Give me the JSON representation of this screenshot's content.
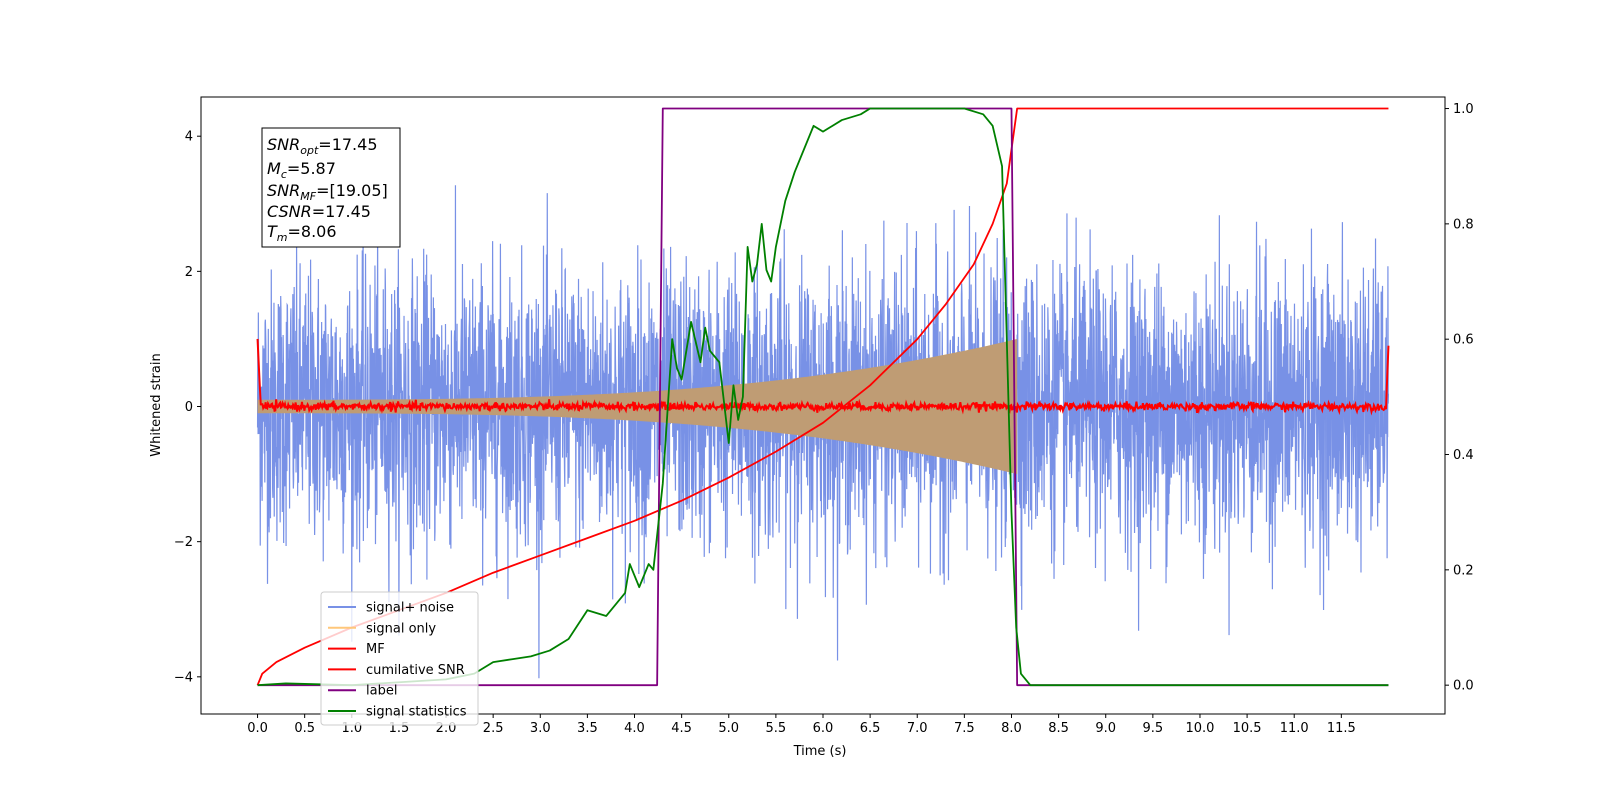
{
  "chart_data": {
    "type": "line",
    "xlabel": "Time (s)",
    "ylabel": "Whitened strain",
    "x_ticks": [
      "0.0",
      "0.5",
      "1.0",
      "1.5",
      "2.0",
      "2.5",
      "3.0",
      "3.5",
      "4.0",
      "4.5",
      "5.0",
      "5.5",
      "6.0",
      "6.5",
      "7.0",
      "7.5",
      "8.0",
      "8.5",
      "9.0",
      "9.5",
      "10.0",
      "10.5",
      "11.0",
      "11.5"
    ],
    "xlim": [
      -0.6,
      12.6
    ],
    "ylim_left": [
      -4.55,
      4.58
    ],
    "ylim_right": [
      -0.05,
      1.02
    ],
    "y_ticks_left": [
      -4,
      -2,
      0,
      2,
      4
    ],
    "y_ticks_right": [
      "0.0",
      "0.2",
      "0.4",
      "0.6",
      "0.8",
      "1.0"
    ],
    "grid": false,
    "legend_location": "lower-left",
    "info_box": {
      "snr_opt": {
        "main": "SNR",
        "sub": "opt",
        "value": "=17.45"
      },
      "mc": {
        "main": "M",
        "sub": "c",
        "value": "=5.87"
      },
      "snr_mf": {
        "main": "SNR",
        "sub": "MF",
        "value": "=[19.05]"
      },
      "csnr": {
        "main": "CSNR",
        "value": "=17.45"
      },
      "tm": {
        "main": "T",
        "sub": "m",
        "value": "=8.06"
      }
    },
    "series": [
      {
        "name": "signal+ noise",
        "axis": "left",
        "color": "#7891e6",
        "description_range": [
          0.0,
          12.0
        ],
        "typical_amplitude": 1.0,
        "peak_range": [
          -4.1,
          4.15
        ]
      },
      {
        "name": "signal only",
        "axis": "left",
        "color": "#ffc77a",
        "envelope_start": 0.0,
        "envelope_end": 8.06,
        "envelope_amplitude_start": 0.1,
        "envelope_amplitude_end": 1.0
      },
      {
        "name": "MF",
        "axis": "left",
        "color": "#ff0000",
        "typical_amplitude": 0.05,
        "edge_values": [
          1.0,
          0.9
        ]
      },
      {
        "name": "cumilative SNR",
        "axis": "right",
        "color": "#ff0000",
        "x": [
          0.0,
          0.05,
          0.2,
          0.5,
          1.0,
          1.5,
          2.0,
          2.5,
          3.0,
          3.5,
          4.0,
          4.5,
          5.0,
          5.5,
          6.0,
          6.5,
          7.0,
          7.3,
          7.6,
          7.8,
          7.95,
          8.06,
          12.0
        ],
        "y": [
          0.0,
          0.02,
          0.04,
          0.065,
          0.1,
          0.13,
          0.16,
          0.195,
          0.225,
          0.255,
          0.285,
          0.32,
          0.36,
          0.405,
          0.455,
          0.52,
          0.6,
          0.66,
          0.73,
          0.8,
          0.87,
          1.0,
          1.0
        ]
      },
      {
        "name": "label",
        "axis": "right",
        "color": "#800080",
        "x": [
          0.0,
          4.24,
          4.3,
          8.0,
          8.06,
          12.0
        ],
        "y": [
          0.0,
          0.0,
          1.0,
          1.0,
          0.0,
          0.0
        ]
      },
      {
        "name": "signal statistics",
        "axis": "right",
        "color": "#008000",
        "x": [
          0.0,
          0.3,
          1.0,
          2.0,
          2.3,
          2.5,
          2.7,
          2.9,
          3.1,
          3.3,
          3.5,
          3.7,
          3.9,
          3.95,
          4.05,
          4.15,
          4.2,
          4.3,
          4.4,
          4.45,
          4.5,
          4.6,
          4.7,
          4.75,
          4.8,
          4.9,
          5.0,
          5.05,
          5.1,
          5.15,
          5.2,
          5.25,
          5.3,
          5.35,
          5.4,
          5.45,
          5.5,
          5.6,
          5.7,
          5.8,
          5.9,
          6.0,
          6.1,
          6.2,
          6.3,
          6.4,
          6.5,
          6.7,
          6.9,
          7.1,
          7.3,
          7.5,
          7.7,
          7.8,
          7.9,
          7.95,
          8.0,
          8.05,
          8.1,
          8.2,
          12.0
        ],
        "y": [
          0.0,
          0.003,
          0.0,
          0.01,
          0.02,
          0.04,
          0.045,
          0.05,
          0.06,
          0.08,
          0.13,
          0.12,
          0.16,
          0.21,
          0.17,
          0.21,
          0.2,
          0.35,
          0.6,
          0.55,
          0.53,
          0.63,
          0.56,
          0.62,
          0.58,
          0.56,
          0.42,
          0.52,
          0.46,
          0.5,
          0.76,
          0.7,
          0.73,
          0.8,
          0.72,
          0.7,
          0.76,
          0.84,
          0.89,
          0.93,
          0.97,
          0.96,
          0.97,
          0.98,
          0.985,
          0.99,
          1.0,
          1.0,
          1.0,
          1.0,
          1.0,
          1.0,
          0.99,
          0.97,
          0.9,
          0.6,
          0.3,
          0.1,
          0.02,
          0.0,
          0.0
        ]
      }
    ]
  }
}
